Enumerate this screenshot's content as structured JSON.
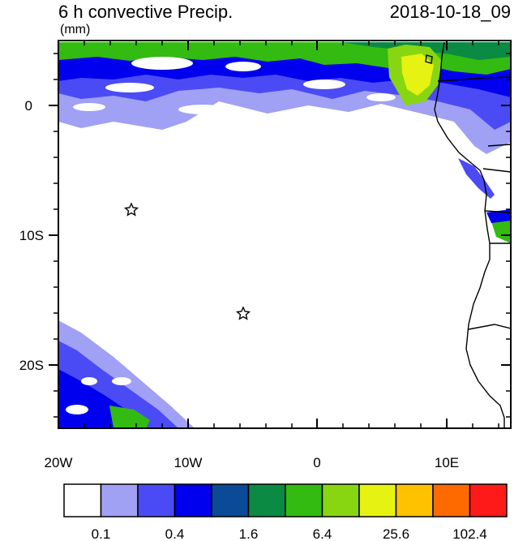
{
  "header": {
    "title": "6 h convective Precip.",
    "datetime": "2018-10-18_09",
    "units": "(mm)"
  },
  "axes": {
    "x_labels": [
      "20W",
      "10W",
      "0",
      "10E"
    ],
    "y_labels": [
      "0",
      "10S",
      "20S"
    ]
  },
  "colorbar": {
    "colors": [
      "#ffffff",
      "#a0a0f5",
      "#4b4bf5",
      "#0000ee",
      "#0a4a96",
      "#0b8a44",
      "#33bb11",
      "#88d611",
      "#e6f211",
      "#ffc200",
      "#ff6a00",
      "#ff1a1a"
    ],
    "labels": [
      "0.1",
      "0.4",
      "1.6",
      "6.4",
      "25.6",
      "102.4"
    ]
  },
  "markers": {
    "icon": "star-icon"
  }
}
